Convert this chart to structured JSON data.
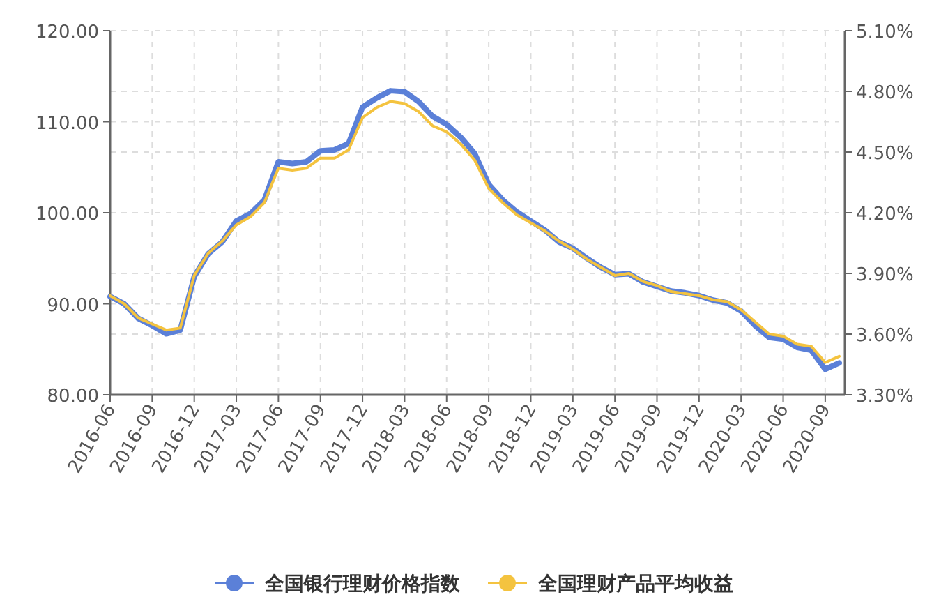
{
  "chart_data": {
    "type": "line",
    "categories": [
      "2016-06",
      null,
      null,
      "2016-09",
      null,
      null,
      "2016-12",
      null,
      null,
      "2017-03",
      null,
      null,
      "2017-06",
      null,
      null,
      "2017-09",
      null,
      null,
      "2017-12",
      null,
      null,
      "2018-03",
      null,
      null,
      "2018-06",
      null,
      null,
      "2018-09",
      null,
      null,
      "2018-12",
      null,
      null,
      "2019-03",
      null,
      null,
      "2019-06",
      null,
      null,
      "2019-09",
      null,
      null,
      "2019-12",
      null,
      null,
      "2020-03",
      null,
      null,
      "2020-06",
      null,
      null,
      "2020-09",
      null
    ],
    "series": [
      {
        "name": "全国银行理财价格指数",
        "color": "#5b80d8",
        "values": [
          90.8,
          90.0,
          88.4,
          87.6,
          86.7,
          87.1,
          93.0,
          95.5,
          96.8,
          99.1,
          99.9,
          101.4,
          105.6,
          105.4,
          105.6,
          106.8,
          106.9,
          107.6,
          111.6,
          112.6,
          113.4,
          113.3,
          112.2,
          110.6,
          109.7,
          108.3,
          106.5,
          103.1,
          101.4,
          100.1,
          99.1,
          98.1,
          96.8,
          96.1,
          95.0,
          94.0,
          93.2,
          93.3,
          92.4,
          91.9,
          91.4,
          91.2,
          90.9,
          90.4,
          90.1,
          89.2,
          87.6,
          86.3,
          86.1,
          85.2,
          84.9,
          82.8,
          83.5
        ]
      },
      {
        "name": "全国理财产品平均收益",
        "color": "#f4c33f",
        "axis": "y2",
        "values": [
          3.79,
          3.75,
          3.68,
          3.65,
          3.62,
          3.63,
          3.89,
          4.0,
          4.06,
          4.14,
          4.18,
          4.25,
          4.42,
          4.41,
          4.42,
          4.47,
          4.47,
          4.51,
          4.67,
          4.72,
          4.75,
          4.74,
          4.7,
          4.63,
          4.6,
          4.54,
          4.46,
          4.32,
          4.25,
          4.19,
          4.15,
          4.11,
          4.06,
          4.02,
          3.97,
          3.93,
          3.89,
          3.9,
          3.86,
          3.84,
          3.81,
          3.8,
          3.79,
          3.77,
          3.76,
          3.72,
          3.66,
          3.6,
          3.59,
          3.55,
          3.54,
          3.46,
          3.49
        ]
      }
    ],
    "ylim": [
      80,
      120
    ],
    "yticks": [
      {
        "value": 80,
        "label": "80.00"
      },
      {
        "value": 90,
        "label": "90.00"
      },
      {
        "value": 100,
        "label": "100.00"
      },
      {
        "value": 110,
        "label": "110.00"
      },
      {
        "value": 120,
        "label": "120.00"
      }
    ],
    "y2lim": [
      3.3,
      5.1
    ],
    "y2ticks": [
      {
        "value": 3.3,
        "label": "3.30%"
      },
      {
        "value": 3.6,
        "label": "3.60%"
      },
      {
        "value": 3.9,
        "label": "3.90%"
      },
      {
        "value": 4.2,
        "label": "4.20%"
      },
      {
        "value": 4.5,
        "label": "4.50%"
      },
      {
        "value": 4.8,
        "label": "4.80%"
      },
      {
        "value": 5.1,
        "label": "5.10%"
      }
    ],
    "grid": true,
    "legend": "bottom",
    "marker": "none",
    "line_style": "solid"
  }
}
